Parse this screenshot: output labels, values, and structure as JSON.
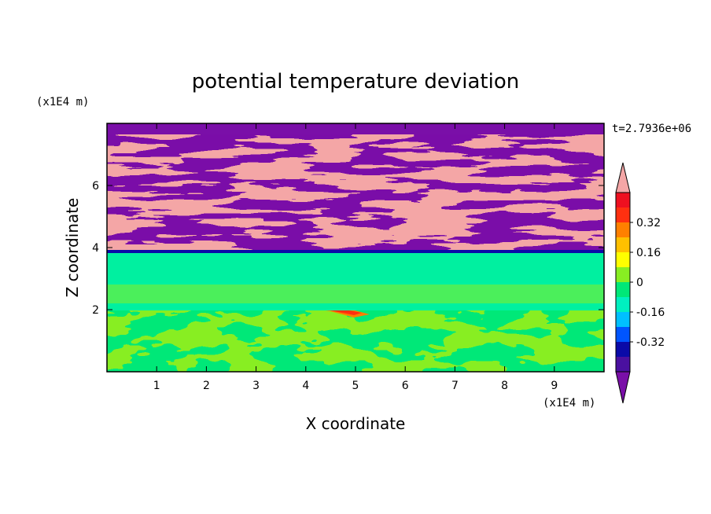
{
  "chart_data": {
    "type": "heatmap",
    "title": "potential temperature deviation",
    "xlabel": "X coordinate",
    "ylabel": "Z coordinate",
    "x_unit": "(x1E4 m)",
    "y_unit": "(x1E4 m)",
    "time_label": "t=2.7936e+06",
    "xlim": [
      0,
      10
    ],
    "ylim": [
      0,
      8
    ],
    "x_ticks": [
      "1",
      "2",
      "3",
      "4",
      "5",
      "6",
      "7",
      "8",
      "9"
    ],
    "y_ticks": [
      "2",
      "4",
      "6"
    ],
    "colorbar": {
      "levels": [
        -0.48,
        -0.4,
        -0.32,
        -0.24,
        -0.16,
        -0.08,
        0,
        0.08,
        0.16,
        0.24,
        0.32,
        0.4,
        0.48
      ],
      "labels": [
        "0.32",
        "0.16",
        "0",
        "-0.16",
        "-0.32"
      ],
      "colors": {
        "below": "#7a0fa8",
        "bins": [
          "#4a10a0",
          "#0a0aa8",
          "#0055ff",
          "#00c0ff",
          "#00f0c0",
          "#00e878",
          "#88ee22",
          "#ffff00",
          "#ffc000",
          "#ff8000",
          "#ff3010",
          "#ee1020"
        ],
        "above": "#f4a6a6"
      }
    },
    "features": [
      {
        "region": "z 0 to 2",
        "description": "near-neutral mixture of -0.08 to 0.08 with warm streak near x=4.5-5"
      },
      {
        "region": "z 2 to 4",
        "description": "mostly slightly negative (-0.08 to 0)"
      },
      {
        "region": "z 4 to 8",
        "description": "alternating bands of strong positive (>0.48) and strong negative (<-0.48)"
      }
    ]
  }
}
